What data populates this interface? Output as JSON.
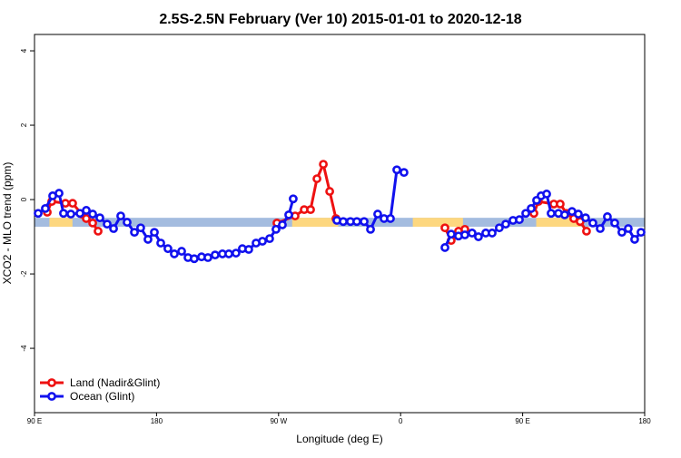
{
  "chart_data": {
    "type": "line",
    "title": "2.5S-2.5N February (Ver 10)   2015-01-01 to 2020-12-18",
    "x_label": "Longitude (deg E)",
    "y_label": "XCO2 - MLO trend (ppm)",
    "xlim": [
      90,
      540
    ],
    "ylim": [
      -5.73,
      4.44
    ],
    "xticks": [
      {
        "value": 90,
        "label": "90 E"
      },
      {
        "value": 180,
        "label": "180"
      },
      {
        "value": 270,
        "label": "90 W"
      },
      {
        "value": 360,
        "label": "0"
      },
      {
        "value": 450,
        "label": "90 E"
      },
      {
        "value": 540,
        "label": "180"
      }
    ],
    "yticks": [
      -4,
      -2,
      0,
      2,
      4
    ],
    "band": {
      "range": [
        -0.73,
        -0.49
      ],
      "color": "#a4bcdf",
      "land_color": "#fdd77f",
      "land": [
        [
          101,
          118
        ],
        [
          280,
          314
        ],
        [
          369,
          406
        ],
        [
          460,
          493
        ]
      ]
    },
    "legend": "bottom-left",
    "series": [
      {
        "name": "Land (Nadir&Glint)",
        "color": "#ee1111",
        "x": [
          99.4,
          102.7,
          112.8,
          118.1,
          124.8,
          128.2,
          132.9,
          136.9,
          null,
          268.8,
          282.2,
          288.9,
          293.6,
          298.3,
          303.0,
          307.7,
          312.3,
          null,
          392.7,
          397.3,
          402.7,
          407.4,
          null,
          458.3,
          461.6,
          473.0,
          477.7,
          482.4,
          487.7,
          492.4,
          497.1
        ],
        "values": [
          -0.34,
          -0.05,
          -0.1,
          -0.1,
          -0.39,
          -0.51,
          -0.63,
          -0.85,
          null,
          -0.63,
          -0.44,
          -0.27,
          -0.27,
          0.56,
          0.95,
          0.22,
          -0.51,
          null,
          -0.76,
          -1.1,
          -0.85,
          -0.8,
          null,
          -0.37,
          -0.05,
          -0.12,
          -0.12,
          -0.37,
          -0.51,
          -0.59,
          -0.85
        ]
      },
      {
        "name": "Ocean (Glint)",
        "color": "#1111ee",
        "x": [
          92.7,
          98.0,
          103.4,
          108.1,
          111.4,
          116.8,
          123.5,
          128.2,
          132.9,
          138.2,
          143.6,
          148.3,
          153.6,
          158.3,
          163.7,
          168.3,
          173.7,
          178.4,
          183.1,
          188.4,
          193.1,
          198.5,
          203.2,
          207.8,
          213.2,
          217.9,
          223.2,
          228.6,
          233.3,
          238.6,
          243.3,
          248.0,
          253.4,
          258.1,
          263.4,
          268.1,
          272.8,
          277.5,
          280.8,
          null,
          313.0,
          317.7,
          323.0,
          327.7,
          333.1,
          337.8,
          343.1,
          347.8,
          352.5,
          357.2,
          362.5,
          null,
          392.7,
          397.3,
          402.7,
          407.4,
          412.7,
          417.4,
          422.8,
          427.5,
          432.8,
          437.5,
          442.9,
          447.6,
          452.3,
          456.3,
          460.3,
          463.6,
          467.7,
          471.0,
          476.4,
          481.0,
          486.4,
          491.1,
          496.4,
          501.8,
          507.2,
          512.5,
          517.9,
          523.2,
          527.9,
          532.6,
          537.3
        ],
        "values": [
          -0.37,
          -0.24,
          0.1,
          0.17,
          -0.37,
          -0.39,
          -0.37,
          -0.29,
          -0.39,
          -0.49,
          -0.66,
          -0.78,
          -0.44,
          -0.61,
          -0.88,
          -0.76,
          -1.07,
          -0.88,
          -1.17,
          -1.32,
          -1.46,
          -1.39,
          -1.56,
          -1.59,
          -1.54,
          -1.56,
          -1.49,
          -1.46,
          -1.46,
          -1.44,
          -1.32,
          -1.34,
          -1.17,
          -1.12,
          -1.05,
          -0.8,
          -0.68,
          -0.41,
          0.02,
          null,
          -0.56,
          -0.59,
          -0.59,
          -0.59,
          -0.59,
          -0.8,
          -0.39,
          -0.51,
          -0.51,
          0.8,
          0.73,
          null,
          -1.29,
          -0.93,
          -0.98,
          -0.95,
          -0.9,
          -1.0,
          -0.9,
          -0.9,
          -0.76,
          -0.66,
          -0.56,
          -0.54,
          -0.37,
          -0.24,
          -0.02,
          0.1,
          0.15,
          -0.37,
          -0.37,
          -0.41,
          -0.32,
          -0.39,
          -0.49,
          -0.63,
          -0.78,
          -0.46,
          -0.63,
          -0.88,
          -0.78,
          -1.07,
          -0.88
        ]
      }
    ]
  }
}
